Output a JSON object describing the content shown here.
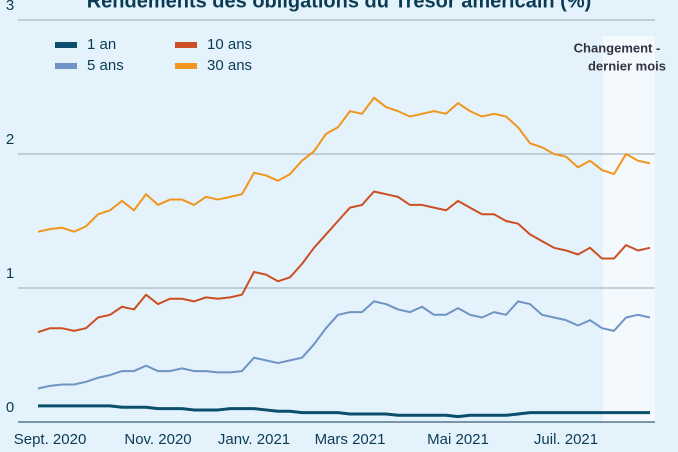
{
  "chart_data": {
    "type": "line",
    "title": "Rendements des obligations du Trésor américain (%)",
    "annotation": [
      "Changement -",
      "dernier mois"
    ],
    "categories": [
      null,
      "Sept. 2020",
      null,
      null,
      null,
      null,
      null,
      null,
      null,
      null,
      "Nov. 2020",
      null,
      null,
      null,
      null,
      null,
      null,
      null,
      "Janv. 2021",
      null,
      null,
      null,
      null,
      null,
      null,
      null,
      "Mars 2021",
      null,
      null,
      null,
      null,
      null,
      null,
      null,
      null,
      "Mai 2021",
      null,
      null,
      null,
      null,
      null,
      null,
      null,
      null,
      "Juil. 2021",
      null,
      null,
      null,
      null,
      null,
      null,
      null
    ],
    "ylim": [
      0,
      3
    ],
    "yticks": [
      0,
      1,
      2,
      3
    ],
    "grid": true,
    "series": [
      {
        "name": "1 an",
        "color": "#0b4f6c",
        "values": [
          0.12,
          0.12,
          0.12,
          0.12,
          0.12,
          0.12,
          0.12,
          0.11,
          0.11,
          0.11,
          0.1,
          0.1,
          0.1,
          0.09,
          0.09,
          0.09,
          0.1,
          0.1,
          0.1,
          0.09,
          0.08,
          0.08,
          0.07,
          0.07,
          0.07,
          0.07,
          0.06,
          0.06,
          0.06,
          0.06,
          0.05,
          0.05,
          0.05,
          0.05,
          0.05,
          0.04,
          0.05,
          0.05,
          0.05,
          0.05,
          0.06,
          0.07,
          0.07,
          0.07,
          0.07,
          0.07,
          0.07,
          0.07,
          0.07,
          0.07,
          0.07,
          0.07
        ]
      },
      {
        "name": "5 ans",
        "color": "#6f93c4",
        "values": [
          0.25,
          0.27,
          0.28,
          0.28,
          0.3,
          0.33,
          0.35,
          0.38,
          0.38,
          0.42,
          0.38,
          0.38,
          0.4,
          0.38,
          0.38,
          0.37,
          0.37,
          0.38,
          0.48,
          0.46,
          0.44,
          0.46,
          0.48,
          0.58,
          0.7,
          0.8,
          0.82,
          0.82,
          0.9,
          0.88,
          0.84,
          0.82,
          0.86,
          0.8,
          0.8,
          0.85,
          0.8,
          0.78,
          0.82,
          0.8,
          0.9,
          0.88,
          0.8,
          0.78,
          0.76,
          0.72,
          0.76,
          0.7,
          0.68,
          0.78,
          0.8,
          0.78
        ]
      },
      {
        "name": "10 ans",
        "color": "#cc4f23",
        "values": [
          0.67,
          0.7,
          0.7,
          0.68,
          0.7,
          0.78,
          0.8,
          0.86,
          0.84,
          0.95,
          0.88,
          0.92,
          0.92,
          0.9,
          0.93,
          0.92,
          0.93,
          0.95,
          1.12,
          1.1,
          1.05,
          1.08,
          1.18,
          1.3,
          1.4,
          1.5,
          1.6,
          1.62,
          1.72,
          1.7,
          1.68,
          1.62,
          1.62,
          1.6,
          1.58,
          1.65,
          1.6,
          1.55,
          1.55,
          1.5,
          1.48,
          1.4,
          1.35,
          1.3,
          1.28,
          1.25,
          1.3,
          1.22,
          1.22,
          1.32,
          1.28,
          1.3
        ]
      },
      {
        "name": "30 ans",
        "color": "#f0951d",
        "values": [
          1.42,
          1.44,
          1.45,
          1.42,
          1.46,
          1.55,
          1.58,
          1.65,
          1.58,
          1.7,
          1.62,
          1.66,
          1.66,
          1.62,
          1.68,
          1.66,
          1.68,
          1.7,
          1.86,
          1.84,
          1.8,
          1.85,
          1.95,
          2.02,
          2.15,
          2.2,
          2.32,
          2.3,
          2.42,
          2.35,
          2.32,
          2.28,
          2.3,
          2.32,
          2.3,
          2.38,
          2.32,
          2.28,
          2.3,
          2.28,
          2.2,
          2.08,
          2.05,
          2.0,
          1.98,
          1.9,
          1.95,
          1.88,
          1.85,
          2.0,
          1.95,
          1.93
        ]
      }
    ]
  }
}
